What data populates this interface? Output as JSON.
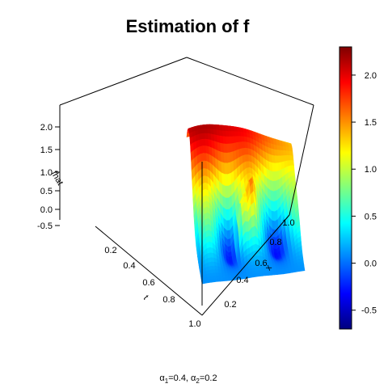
{
  "chart_data": {
    "type": "surface3d",
    "title": "Estimation of f",
    "xlabel": "x",
    "ylabel": "t",
    "zlabel": "fhat",
    "x_ticks": [
      "0.2",
      "0.4",
      "0.6",
      "0.8",
      "1.0"
    ],
    "t_ticks": [
      "0.2",
      "0.4",
      "0.6",
      "0.8",
      "1.0"
    ],
    "z_ticks": [
      "-0.5",
      "0.0",
      "0.5",
      "1.0",
      "1.5",
      "2.0"
    ],
    "xlim": [
      0,
      1
    ],
    "tlim": [
      0,
      1
    ],
    "zlim": [
      -0.7,
      2.3
    ],
    "colorbar": {
      "ticks": [
        "-0.5",
        "0.0",
        "0.5",
        "1.0",
        "1.5",
        "2.0"
      ],
      "range": [
        -0.7,
        2.3
      ],
      "palette": "jet",
      "colors": [
        "#00007f",
        "#0000ff",
        "#007fff",
        "#00ffff",
        "#7fff7f",
        "#ffff00",
        "#ff7f00",
        "#ff0000",
        "#7f0000"
      ]
    },
    "footer": {
      "alpha1_sym": "α",
      "alpha1_sub": "1",
      "alpha1_val": "=0.4, ",
      "alpha2_sym": "α",
      "alpha2_sub": "2",
      "alpha2_val": "=0.2"
    }
  }
}
